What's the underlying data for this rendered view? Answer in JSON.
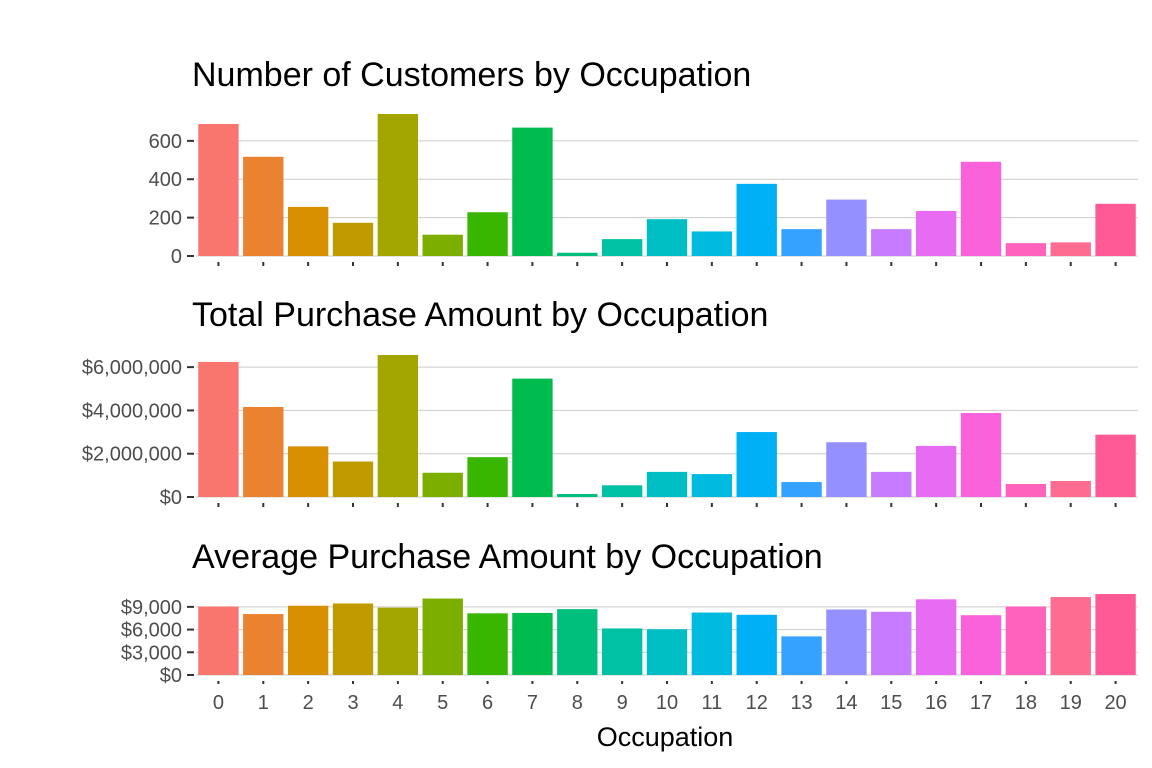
{
  "chart_data": [
    {
      "type": "bar",
      "title": "Number of Customers by Occupation",
      "categories": [
        "0",
        "1",
        "2",
        "3",
        "4",
        "5",
        "6",
        "7",
        "8",
        "9",
        "10",
        "11",
        "12",
        "13",
        "14",
        "15",
        "16",
        "17",
        "18",
        "19",
        "20"
      ],
      "values": [
        688,
        517,
        256,
        173,
        740,
        111,
        228,
        669,
        17,
        88,
        192,
        128,
        376,
        140,
        294,
        140,
        235,
        491,
        67,
        71,
        272
      ],
      "yticks": [
        0,
        200,
        400,
        600
      ],
      "ytick_labels": [
        "0",
        "200",
        "400",
        "600"
      ],
      "ylim": [
        0,
        740
      ],
      "grid": true,
      "xlabel": "",
      "ylabel": ""
    },
    {
      "type": "bar",
      "title": "Total Purchase Amount by Occupation",
      "categories": [
        "0",
        "1",
        "2",
        "3",
        "4",
        "5",
        "6",
        "7",
        "8",
        "9",
        "10",
        "11",
        "12",
        "13",
        "14",
        "15",
        "16",
        "17",
        "18",
        "19",
        "20"
      ],
      "values": [
        6240000,
        4160000,
        2340000,
        1640000,
        6560000,
        1120000,
        1840000,
        5470000,
        140000,
        540000,
        1160000,
        1060000,
        3000000,
        690000,
        2530000,
        1160000,
        2360000,
        3880000,
        600000,
        740000,
        2880000
      ],
      "yticks": [
        0,
        2000000,
        4000000,
        6000000
      ],
      "ytick_labels": [
        "$0",
        "$2,000,000",
        "$4,000,000",
        "$6,000,000"
      ],
      "ylim": [
        0,
        6560000
      ],
      "grid": true,
      "xlabel": "",
      "ylabel": ""
    },
    {
      "type": "bar",
      "title": "Average Purchase Amount by Occupation",
      "categories": [
        "0",
        "1",
        "2",
        "3",
        "4",
        "5",
        "6",
        "7",
        "8",
        "9",
        "10",
        "11",
        "12",
        "13",
        "14",
        "15",
        "16",
        "17",
        "18",
        "19",
        "20"
      ],
      "values": [
        9050,
        8050,
        9150,
        9450,
        8900,
        10100,
        8150,
        8200,
        8700,
        6150,
        6050,
        8250,
        7950,
        5100,
        8650,
        8350,
        10000,
        7900,
        9050,
        10300,
        10700
      ],
      "yticks": [
        0,
        3000,
        6000,
        9000
      ],
      "ytick_labels": [
        "$0",
        "$3,000",
        "$6,000",
        "$9,000"
      ],
      "ylim": [
        0,
        10700
      ],
      "grid": true,
      "xlabel": "Occupation",
      "ylabel": ""
    }
  ],
  "colors": [
    "#F8766D",
    "#EA8331",
    "#D89000",
    "#C09B00",
    "#A3A500",
    "#7CAE00",
    "#39B600",
    "#00BB4E",
    "#00BF7D",
    "#00C1A3",
    "#00BFC4",
    "#00BAE0",
    "#00B0F6",
    "#35A2FF",
    "#9590FF",
    "#C77CFF",
    "#E76BF3",
    "#FA62DB",
    "#FF62BC",
    "#FF6C91",
    "#FF5A96"
  ]
}
